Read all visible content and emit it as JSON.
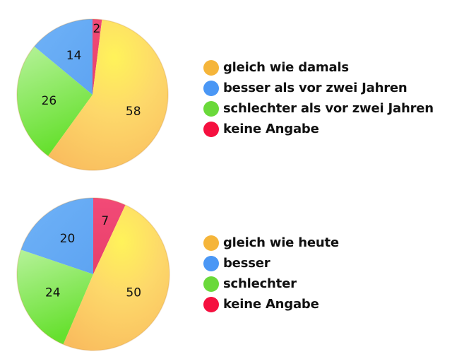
{
  "chart_data": [
    {
      "type": "pie",
      "title": "",
      "categories": [
        "keine Angabe",
        "gleich wie damals",
        "schlechter als vor zwei Jahren",
        "besser als vor zwei Jahren"
      ],
      "values": [
        2,
        58,
        26,
        14
      ],
      "colors": [
        "#f0426e",
        "#fcc95a",
        "#8fe060",
        "#5aa7f5"
      ],
      "legend": [
        "gleich wie damals",
        "besser als vor zwei Jahren",
        "schlechter als vor zwei Jahren",
        "keine Angabe"
      ],
      "legend_colors": [
        "#f5b53a",
        "#4a97f5",
        "#6ad93a",
        "#f5103f"
      ],
      "legend_position": "right",
      "data_labels": [
        "2",
        "58",
        "26",
        "14"
      ]
    },
    {
      "type": "pie",
      "title": "",
      "categories": [
        "keine Angabe",
        "gleich wie heute",
        "schlechter",
        "besser"
      ],
      "values": [
        7,
        50,
        24,
        20
      ],
      "colors": [
        "#f0426e",
        "#fcc95a",
        "#7fe050",
        "#5aa7f5"
      ],
      "legend": [
        "gleich wie heute",
        "besser",
        "schlechter",
        "keine Angabe"
      ],
      "legend_colors": [
        "#f5b53a",
        "#4a97f5",
        "#6ad93a",
        "#f5103f"
      ],
      "legend_position": "right",
      "data_labels": [
        "7",
        "50",
        "24",
        "20"
      ]
    }
  ],
  "legend1": {
    "items": [
      {
        "label": "gleich wie damals",
        "color": "#f5b53a"
      },
      {
        "label": "besser als vor zwei Jahren",
        "color": "#4a97f5"
      },
      {
        "label": "schlechter als vor zwei Jahren",
        "color": "#6ad93a"
      },
      {
        "label": "keine Angabe",
        "color": "#f5103f"
      }
    ]
  },
  "legend2": {
    "items": [
      {
        "label": "gleich wie heute",
        "color": "#f5b53a"
      },
      {
        "label": "besser",
        "color": "#4a97f5"
      },
      {
        "label": "schlechter",
        "color": "#6ad93a"
      },
      {
        "label": "keine Angabe",
        "color": "#f5103f"
      }
    ]
  }
}
